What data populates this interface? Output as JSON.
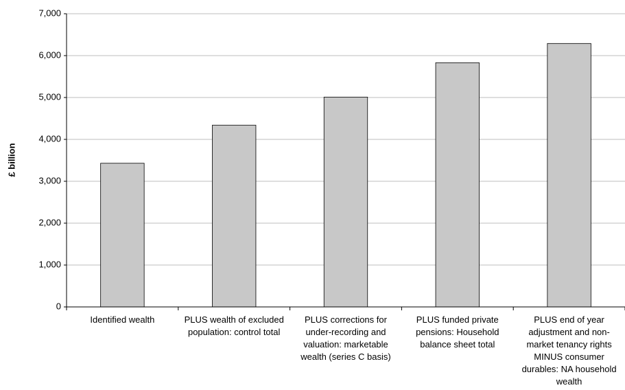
{
  "chart_data": {
    "type": "bar",
    "y_label": "£ billion",
    "categories": [
      "Identified wealth",
      "PLUS wealth of excluded population: control total",
      "PLUS corrections for under-recording and valuation: marketable wealth (series C basis)",
      "PLUS funded private pensions: Household balance sheet total",
      "PLUS end of year adjustment and non-market tenancy rights MINUS consumer durables: NA household wealth"
    ],
    "values": [
      3430,
      4340,
      5010,
      5830,
      6290
    ],
    "color": "#c8c8c8",
    "ylim": [
      0,
      7000
    ],
    "yticks": [
      0,
      {
        "value": 1000,
        "label": "1,000"
      },
      {
        "value": 2000,
        "label": "2,000"
      },
      {
        "value": 3000,
        "label": "3,000"
      },
      {
        "value": 4000,
        "label": "4,000"
      },
      {
        "value": 5000,
        "label": "5,000"
      },
      {
        "value": 6000,
        "label": "6,000"
      },
      {
        "value": 7000,
        "label": "7,000"
      }
    ],
    "grid": true
  }
}
